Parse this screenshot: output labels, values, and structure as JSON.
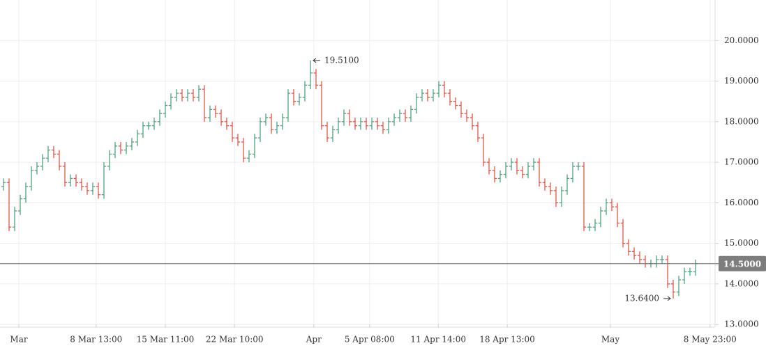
{
  "chart_data": {
    "type": "ohlc",
    "up_color": "#53a27e",
    "down_color": "#e0544b",
    "grid": true,
    "ylim": [
      12.9,
      21.0
    ],
    "yticks": [
      {
        "value": 13,
        "label": "13.0000"
      },
      {
        "value": 14,
        "label": "14.0000"
      },
      {
        "value": 15,
        "label": "15.0000"
      },
      {
        "value": 16,
        "label": "16.0000"
      },
      {
        "value": 17,
        "label": "17.0000"
      },
      {
        "value": 18,
        "label": "18.0000"
      },
      {
        "value": 19,
        "label": "19.0000"
      },
      {
        "value": 20,
        "label": "20.0000"
      }
    ],
    "xlim": [
      -0.625,
      127.5
    ],
    "xticks": [
      {
        "value": 2.75,
        "label": "Mar"
      },
      {
        "value": 16.6,
        "label": "8 Mar 13:00"
      },
      {
        "value": 29,
        "label": "15 Mar 11:00"
      },
      {
        "value": 41.4,
        "label": "22 Mar 10:00"
      },
      {
        "value": 55.6,
        "label": "Apr"
      },
      {
        "value": 65.6,
        "label": "5 Apr 08:00"
      },
      {
        "value": 77.9,
        "label": "11 Apr 14:00"
      },
      {
        "value": 90.25,
        "label": "18 Apr 13:00"
      },
      {
        "value": 108.75,
        "label": "May"
      },
      {
        "value": 126.6,
        "label": "8 May 23:00"
      }
    ],
    "open": [
      16.4,
      16.5,
      15.4,
      15.8,
      16.1,
      16.4,
      16.8,
      16.9,
      17.1,
      17.3,
      17.2,
      16.9,
      16.5,
      16.6,
      16.5,
      16.4,
      16.3,
      16.4,
      16.2,
      16.9,
      17.2,
      17.4,
      17.3,
      17.4,
      17.5,
      17.7,
      17.9,
      17.9,
      18.0,
      18.2,
      18.4,
      18.6,
      18.7,
      18.6,
      18.7,
      18.6,
      18.8,
      18.1,
      18.3,
      18.2,
      18.0,
      17.9,
      17.6,
      17.5,
      17.1,
      17.2,
      17.6,
      18.0,
      18.1,
      17.8,
      17.9,
      18.1,
      18.7,
      18.5,
      18.6,
      18.9,
      19.2,
      18.9,
      17.9,
      17.6,
      17.8,
      18.0,
      18.2,
      18.0,
      17.9,
      18.0,
      17.9,
      18.0,
      17.9,
      17.8,
      18.0,
      18.1,
      18.2,
      18.1,
      18.3,
      18.6,
      18.7,
      18.6,
      18.7,
      18.9,
      18.7,
      18.5,
      18.4,
      18.2,
      18.1,
      17.9,
      17.6,
      17.0,
      16.8,
      16.6,
      16.7,
      16.9,
      17.0,
      16.8,
      16.7,
      16.9,
      17.0,
      16.5,
      16.4,
      16.3,
      16.0,
      16.3,
      16.6,
      16.9,
      16.9,
      15.4,
      15.4,
      15.5,
      15.8,
      16.0,
      15.9,
      15.5,
      15.0,
      14.8,
      14.7,
      14.6,
      14.5,
      14.5,
      14.6,
      14.6,
      14.0,
      13.8,
      14.1,
      14.3,
      14.3
    ],
    "high": [
      16.6,
      16.6,
      15.9,
      16.2,
      16.5,
      16.9,
      17.0,
      17.2,
      17.4,
      17.4,
      17.3,
      17.0,
      16.7,
      16.7,
      16.6,
      16.5,
      16.5,
      16.5,
      17.0,
      17.3,
      17.5,
      17.5,
      17.5,
      17.6,
      17.8,
      18.0,
      18.0,
      18.1,
      18.3,
      18.5,
      18.7,
      18.8,
      18.8,
      18.8,
      18.8,
      18.9,
      18.9,
      18.4,
      18.4,
      18.3,
      18.1,
      18.0,
      17.7,
      17.6,
      17.3,
      17.7,
      18.1,
      18.2,
      18.2,
      18.0,
      18.2,
      18.8,
      18.8,
      18.7,
      19.0,
      19.51,
      19.3,
      19.0,
      18.0,
      17.9,
      18.1,
      18.3,
      18.3,
      18.1,
      18.1,
      18.1,
      18.1,
      18.1,
      18.0,
      18.1,
      18.2,
      18.3,
      18.3,
      18.4,
      18.7,
      18.8,
      18.8,
      18.8,
      19.0,
      19.0,
      18.8,
      18.6,
      18.5,
      18.3,
      18.2,
      18.0,
      17.7,
      17.1,
      16.9,
      16.8,
      17.0,
      17.1,
      17.1,
      16.9,
      17.0,
      17.1,
      17.1,
      16.6,
      16.5,
      16.4,
      16.4,
      16.7,
      17.0,
      17.0,
      17.0,
      15.5,
      15.6,
      15.9,
      16.1,
      16.1,
      16.0,
      15.6,
      15.1,
      14.9,
      14.8,
      14.7,
      14.6,
      14.7,
      14.7,
      14.7,
      14.1,
      14.2,
      14.4,
      14.4,
      14.6
    ],
    "low": [
      16.3,
      15.3,
      15.3,
      15.7,
      16.0,
      16.3,
      16.7,
      16.8,
      17.0,
      17.1,
      16.8,
      16.4,
      16.4,
      16.4,
      16.3,
      16.2,
      16.2,
      16.1,
      16.1,
      16.8,
      17.1,
      17.2,
      17.2,
      17.3,
      17.4,
      17.6,
      17.8,
      17.8,
      17.9,
      18.1,
      18.3,
      18.5,
      18.5,
      18.5,
      18.5,
      18.5,
      18.0,
      18.0,
      18.1,
      17.9,
      17.8,
      17.5,
      17.4,
      17.0,
      17.0,
      17.1,
      17.5,
      17.9,
      17.7,
      17.7,
      17.8,
      18.0,
      18.4,
      18.4,
      18.5,
      18.8,
      18.8,
      17.8,
      17.5,
      17.5,
      17.7,
      17.9,
      17.9,
      17.8,
      17.8,
      17.8,
      17.8,
      17.8,
      17.7,
      17.7,
      17.9,
      18.0,
      18.0,
      18.0,
      18.2,
      18.5,
      18.5,
      18.5,
      18.6,
      18.6,
      18.4,
      18.3,
      18.1,
      18.0,
      17.8,
      17.5,
      16.9,
      16.7,
      16.5,
      16.5,
      16.6,
      16.8,
      16.7,
      16.6,
      16.6,
      16.8,
      16.4,
      16.3,
      16.2,
      15.9,
      15.9,
      16.2,
      16.5,
      16.8,
      15.3,
      15.3,
      15.3,
      15.4,
      15.7,
      15.8,
      15.4,
      14.9,
      14.7,
      14.6,
      14.5,
      14.4,
      14.4,
      14.4,
      14.5,
      13.9,
      13.64,
      13.7,
      14.0,
      14.2,
      14.2
    ],
    "close": [
      16.5,
      15.4,
      15.8,
      16.1,
      16.4,
      16.8,
      16.9,
      17.1,
      17.3,
      17.2,
      16.9,
      16.5,
      16.6,
      16.5,
      16.4,
      16.3,
      16.4,
      16.2,
      16.9,
      17.2,
      17.4,
      17.3,
      17.4,
      17.5,
      17.7,
      17.9,
      17.9,
      18.0,
      18.2,
      18.4,
      18.6,
      18.7,
      18.6,
      18.7,
      18.6,
      18.8,
      18.1,
      18.3,
      18.2,
      18.0,
      17.9,
      17.6,
      17.5,
      17.1,
      17.2,
      17.6,
      18.0,
      18.1,
      17.8,
      17.9,
      18.1,
      18.7,
      18.5,
      18.6,
      18.9,
      19.2,
      18.9,
      17.9,
      17.6,
      17.8,
      18.0,
      18.2,
      18.0,
      17.9,
      18.0,
      17.9,
      18.0,
      17.9,
      17.8,
      18.0,
      18.1,
      18.2,
      18.1,
      18.3,
      18.6,
      18.7,
      18.6,
      18.7,
      18.9,
      18.7,
      18.5,
      18.4,
      18.2,
      18.1,
      17.9,
      17.6,
      17.0,
      16.8,
      16.6,
      16.7,
      16.9,
      17.0,
      16.8,
      16.7,
      16.9,
      17.0,
      16.5,
      16.4,
      16.3,
      16.0,
      16.3,
      16.6,
      16.9,
      16.9,
      15.4,
      15.4,
      15.5,
      15.8,
      16.0,
      15.9,
      15.5,
      15.0,
      14.8,
      14.7,
      14.6,
      14.5,
      14.5,
      14.6,
      14.6,
      14.0,
      13.8,
      14.1,
      14.3,
      14.3,
      14.5
    ],
    "max_label": {
      "value": 19.51,
      "label": "19.5100"
    },
    "min_label": {
      "value": 13.64,
      "label": "13.6400"
    },
    "last_price": {
      "value": 14.5,
      "label": "14.5000"
    }
  }
}
